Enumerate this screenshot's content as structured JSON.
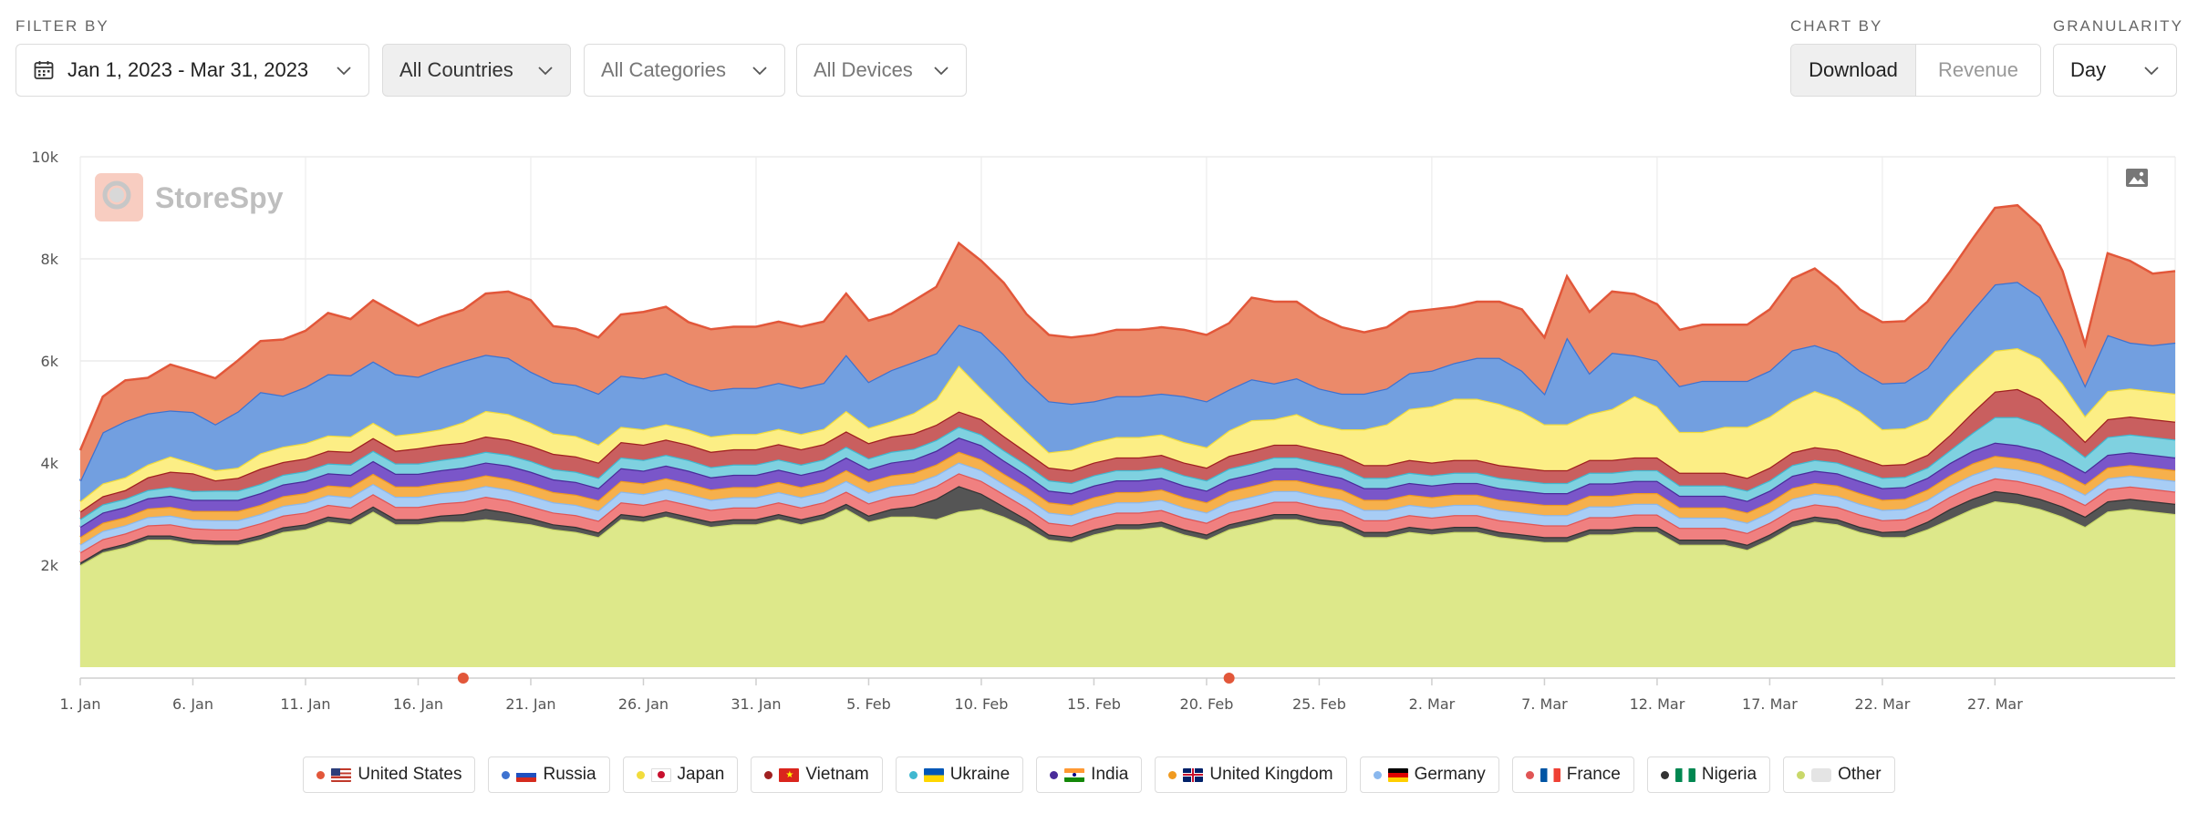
{
  "filters": {
    "section_label": "FILTER BY",
    "date_range": "Jan 1, 2023 - Mar 31, 2023",
    "countries": "All Countries",
    "categories": "All Categories",
    "devices": "All Devices"
  },
  "chart_by": {
    "label": "CHART BY",
    "options": [
      "Download",
      "Revenue"
    ],
    "selected": "Download"
  },
  "granularity": {
    "label": "GRANULARITY",
    "value": "Day"
  },
  "watermark": "StoreSpy",
  "icons": {
    "calendar": "calendar-icon",
    "chevron": "chevron-down-icon",
    "export": "image-export-icon",
    "logo": "storespy-logo-icon"
  },
  "chart_data": {
    "type": "area",
    "stacked": true,
    "x_start": "2023-01-01",
    "x_end": "2023-03-31",
    "x_tick_labels": [
      "1. Jan",
      "6. Jan",
      "11. Jan",
      "16. Jan",
      "21. Jan",
      "26. Jan",
      "31. Jan",
      "5. Feb",
      "10. Feb",
      "15. Feb",
      "20. Feb",
      "25. Feb",
      "2. Mar",
      "7. Mar",
      "12. Mar",
      "17. Mar",
      "22. Mar",
      "27. Mar"
    ],
    "y_tick_labels": [
      "2k",
      "4k",
      "6k",
      "8k",
      "10k"
    ],
    "ylim": [
      0,
      10000
    ],
    "grid": true,
    "legend_position": "bottom",
    "event_markers": [
      17,
      51
    ],
    "series": [
      {
        "name": "Other",
        "color": "#dde88a",
        "line": "#c9d86a",
        "flag": "other",
        "values": [
          2000,
          2250,
          2350,
          2500,
          2500,
          2420,
          2400,
          2400,
          2500,
          2650,
          2700,
          2850,
          2800,
          3050,
          2800,
          2800,
          2850,
          2850,
          2900,
          2850,
          2800,
          2700,
          2650,
          2550,
          2900,
          2850,
          2950,
          2850,
          2750,
          2800,
          2800,
          2900,
          2800,
          2900,
          3100,
          2850,
          2950,
          2950,
          2900,
          3050,
          3100,
          2950,
          2750,
          2500,
          2450,
          2600,
          2700,
          2700,
          2750,
          2600,
          2500,
          2700,
          2800,
          2900,
          2900,
          2800,
          2750,
          2550,
          2550,
          2650,
          2600,
          2650,
          2650,
          2550,
          2500,
          2450,
          2450,
          2600,
          2600,
          2650,
          2650,
          2400,
          2400,
          2400,
          2300,
          2500,
          2750,
          2850,
          2800,
          2650,
          2550,
          2550,
          2700,
          2900,
          3100,
          3250,
          3200,
          3100,
          2950,
          2750,
          3050,
          3100,
          3050,
          3000
        ]
      },
      {
        "name": "Nigeria",
        "color": "#555555",
        "line": "#333333",
        "flag": "ng",
        "values": [
          50,
          60,
          70,
          80,
          80,
          80,
          80,
          80,
          90,
          90,
          100,
          100,
          100,
          100,
          100,
          100,
          120,
          150,
          200,
          180,
          120,
          100,
          100,
          90,
          100,
          100,
          100,
          100,
          100,
          100,
          100,
          100,
          100,
          100,
          100,
          120,
          150,
          200,
          400,
          500,
          300,
          200,
          150,
          100,
          100,
          100,
          100,
          100,
          100,
          100,
          100,
          100,
          100,
          100,
          100,
          100,
          100,
          100,
          100,
          100,
          100,
          100,
          100,
          100,
          100,
          100,
          100,
          100,
          100,
          100,
          100,
          100,
          100,
          100,
          100,
          100,
          100,
          100,
          100,
          100,
          100,
          120,
          150,
          200,
          200,
          200,
          200,
          200,
          200,
          200,
          200,
          200,
          200,
          200
        ]
      },
      {
        "name": "France",
        "color": "#f08080",
        "line": "#e05555",
        "flag": "fr",
        "values": [
          200,
          200,
          200,
          200,
          220,
          220,
          220,
          220,
          230,
          230,
          230,
          230,
          230,
          240,
          240,
          240,
          240,
          240,
          240,
          240,
          230,
          230,
          230,
          230,
          230,
          230,
          230,
          230,
          230,
          230,
          230,
          230,
          230,
          230,
          240,
          240,
          240,
          240,
          250,
          250,
          250,
          240,
          230,
          230,
          230,
          230,
          230,
          230,
          230,
          230,
          230,
          230,
          230,
          240,
          240,
          240,
          230,
          230,
          230,
          230,
          230,
          230,
          230,
          230,
          230,
          230,
          230,
          240,
          240,
          240,
          240,
          230,
          230,
          230,
          230,
          230,
          240,
          240,
          240,
          240,
          230,
          230,
          230,
          240,
          250,
          250,
          250,
          250,
          240,
          230,
          240,
          240,
          240,
          240
        ]
      },
      {
        "name": "Germany",
        "color": "#a8cdf5",
        "line": "#8ab8ee",
        "flag": "de",
        "values": [
          150,
          160,
          160,
          160,
          170,
          170,
          180,
          180,
          180,
          190,
          190,
          190,
          200,
          200,
          200,
          200,
          200,
          210,
          210,
          210,
          210,
          200,
          200,
          200,
          210,
          210,
          210,
          210,
          200,
          200,
          200,
          200,
          200,
          200,
          210,
          210,
          210,
          210,
          210,
          210,
          210,
          200,
          200,
          200,
          200,
          200,
          200,
          200,
          200,
          200,
          200,
          210,
          210,
          210,
          210,
          210,
          200,
          200,
          200,
          200,
          200,
          200,
          200,
          200,
          200,
          200,
          200,
          210,
          210,
          210,
          210,
          200,
          200,
          200,
          200,
          200,
          210,
          210,
          210,
          210,
          200,
          200,
          200,
          210,
          220,
          220,
          220,
          220,
          210,
          200,
          210,
          210,
          210,
          210
        ]
      },
      {
        "name": "United Kingdom",
        "color": "#f6b04c",
        "line": "#f09a20",
        "flag": "gb",
        "values": [
          150,
          160,
          160,
          170,
          170,
          170,
          180,
          180,
          180,
          190,
          190,
          190,
          200,
          200,
          200,
          200,
          200,
          210,
          210,
          210,
          210,
          200,
          200,
          200,
          210,
          210,
          210,
          210,
          200,
          200,
          200,
          200,
          200,
          200,
          210,
          210,
          210,
          210,
          210,
          210,
          210,
          200,
          200,
          200,
          200,
          200,
          200,
          200,
          200,
          200,
          200,
          210,
          210,
          210,
          210,
          210,
          200,
          200,
          200,
          200,
          200,
          200,
          200,
          200,
          200,
          200,
          200,
          210,
          210,
          210,
          210,
          200,
          200,
          200,
          200,
          200,
          210,
          210,
          210,
          210,
          200,
          200,
          200,
          210,
          220,
          220,
          220,
          220,
          210,
          200,
          210,
          210,
          210,
          210
        ]
      },
      {
        "name": "India",
        "color": "#7a56c9",
        "line": "#4a2c9a",
        "flag": "in",
        "values": [
          200,
          200,
          200,
          200,
          220,
          220,
          220,
          220,
          230,
          230,
          240,
          240,
          240,
          250,
          250,
          250,
          250,
          250,
          250,
          260,
          260,
          250,
          250,
          240,
          250,
          250,
          250,
          250,
          240,
          240,
          240,
          240,
          240,
          240,
          250,
          250,
          250,
          260,
          270,
          280,
          280,
          260,
          240,
          230,
          230,
          230,
          230,
          230,
          230,
          230,
          230,
          230,
          230,
          240,
          240,
          240,
          230,
          230,
          230,
          230,
          230,
          230,
          230,
          230,
          230,
          230,
          230,
          240,
          240,
          240,
          240,
          230,
          230,
          230,
          230,
          230,
          240,
          240,
          240,
          240,
          230,
          230,
          230,
          240,
          250,
          260,
          260,
          260,
          250,
          240,
          250,
          250,
          250,
          250
        ]
      },
      {
        "name": "Ukraine",
        "color": "#7fd1e0",
        "line": "#40b8d0",
        "flag": "ua",
        "values": [
          150,
          160,
          160,
          160,
          170,
          170,
          180,
          180,
          180,
          190,
          190,
          190,
          200,
          200,
          200,
          200,
          200,
          210,
          210,
          210,
          210,
          200,
          200,
          200,
          210,
          210,
          210,
          210,
          200,
          200,
          200,
          200,
          200,
          200,
          210,
          210,
          210,
          210,
          210,
          210,
          210,
          200,
          200,
          200,
          200,
          200,
          200,
          200,
          200,
          200,
          200,
          210,
          210,
          210,
          210,
          210,
          200,
          200,
          200,
          200,
          200,
          200,
          200,
          200,
          200,
          200,
          200,
          210,
          210,
          210,
          210,
          200,
          200,
          200,
          200,
          200,
          210,
          210,
          210,
          210,
          200,
          200,
          200,
          250,
          350,
          500,
          550,
          500,
          400,
          300,
          350,
          350,
          350,
          350
        ]
      },
      {
        "name": "Vietnam",
        "color": "#c95f5f",
        "line": "#a02020",
        "flag": "vn",
        "values": [
          150,
          160,
          170,
          250,
          300,
          350,
          200,
          250,
          300,
          250,
          250,
          250,
          250,
          250,
          250,
          300,
          300,
          280,
          300,
          300,
          300,
          300,
          300,
          300,
          300,
          300,
          300,
          300,
          300,
          300,
          300,
          300,
          300,
          300,
          300,
          300,
          300,
          300,
          300,
          300,
          300,
          280,
          250,
          250,
          250,
          250,
          250,
          250,
          250,
          250,
          250,
          250,
          250,
          250,
          250,
          250,
          250,
          250,
          250,
          250,
          250,
          250,
          250,
          250,
          250,
          250,
          250,
          250,
          250,
          250,
          250,
          250,
          250,
          250,
          250,
          250,
          250,
          250,
          250,
          250,
          250,
          250,
          250,
          300,
          400,
          500,
          550,
          500,
          400,
          300,
          350,
          350,
          350,
          350
        ]
      },
      {
        "name": "Japan",
        "color": "#fcee85",
        "line": "#f2dc3c",
        "flag": "jp",
        "values": [
          200,
          250,
          250,
          250,
          300,
          200,
          200,
          200,
          300,
          300,
          300,
          300,
          300,
          300,
          300,
          300,
          300,
          400,
          500,
          500,
          450,
          400,
          400,
          350,
          300,
          300,
          300,
          300,
          300,
          300,
          300,
          300,
          300,
          300,
          400,
          300,
          300,
          400,
          500,
          900,
          600,
          500,
          400,
          300,
          400,
          400,
          400,
          400,
          400,
          400,
          400,
          500,
          600,
          500,
          600,
          500,
          500,
          700,
          800,
          1000,
          1100,
          1200,
          1200,
          1200,
          1100,
          900,
          900,
          900,
          1000,
          1200,
          1000,
          800,
          800,
          900,
          1000,
          1000,
          1000,
          1100,
          1000,
          900,
          700,
          700,
          700,
          800,
          800,
          800,
          800,
          800,
          700,
          500,
          550,
          550,
          550,
          550
        ]
      },
      {
        "name": "Russia",
        "color": "#729fe0",
        "line": "#3d72d0",
        "flag": "ru",
        "values": [
          400,
          1000,
          1100,
          1000,
          900,
          1000,
          900,
          1100,
          1200,
          1000,
          1100,
          1200,
          1200,
          1200,
          1200,
          1100,
          1200,
          1200,
          1100,
          1100,
          1000,
          1000,
          1000,
          1000,
          1000,
          1000,
          1000,
          900,
          900,
          900,
          900,
          900,
          900,
          900,
          1100,
          900,
          1000,
          1000,
          900,
          800,
          1100,
          1100,
          1000,
          1000,
          900,
          800,
          800,
          800,
          800,
          900,
          900,
          800,
          800,
          700,
          700,
          700,
          700,
          700,
          700,
          700,
          700,
          700,
          800,
          900,
          800,
          600,
          1700,
          800,
          1100,
          800,
          900,
          900,
          1000,
          900,
          900,
          900,
          1000,
          900,
          900,
          800,
          900,
          900,
          1000,
          1100,
          1200,
          1300,
          1300,
          1200,
          900,
          600,
          1100,
          900,
          900,
          1000
        ]
      },
      {
        "name": "United States",
        "color": "#eb8a6a",
        "line": "#e2573a",
        "flag": "us",
        "values": [
          600,
          700,
          800,
          700,
          900,
          800,
          900,
          1000,
          1000,
          1100,
          1100,
          1200,
          1100,
          1200,
          1200,
          1000,
          1000,
          1000,
          1200,
          1300,
          1400,
          1100,
          1100,
          1100,
          1200,
          1300,
          1300,
          1200,
          1200,
          1200,
          1200,
          1200,
          1200,
          1200,
          1200,
          1200,
          1100,
          1200,
          1300,
          1600,
          1400,
          1400,
          1300,
          1300,
          1300,
          1300,
          1300,
          1300,
          1300,
          1300,
          1300,
          1300,
          1600,
          1600,
          1500,
          1400,
          1300,
          1200,
          1200,
          1200,
          1200,
          1100,
          1100,
          1100,
          1200,
          1100,
          1200,
          1200,
          1200,
          1200,
          1100,
          1100,
          1100,
          1100,
          1100,
          1200,
          1400,
          1500,
          1300,
          1200,
          1200,
          1200,
          1300,
          1300,
          1400,
          1500,
          1500,
          1400,
          1300,
          800,
          1600,
          1600,
          1400,
          1400
        ]
      }
    ]
  }
}
